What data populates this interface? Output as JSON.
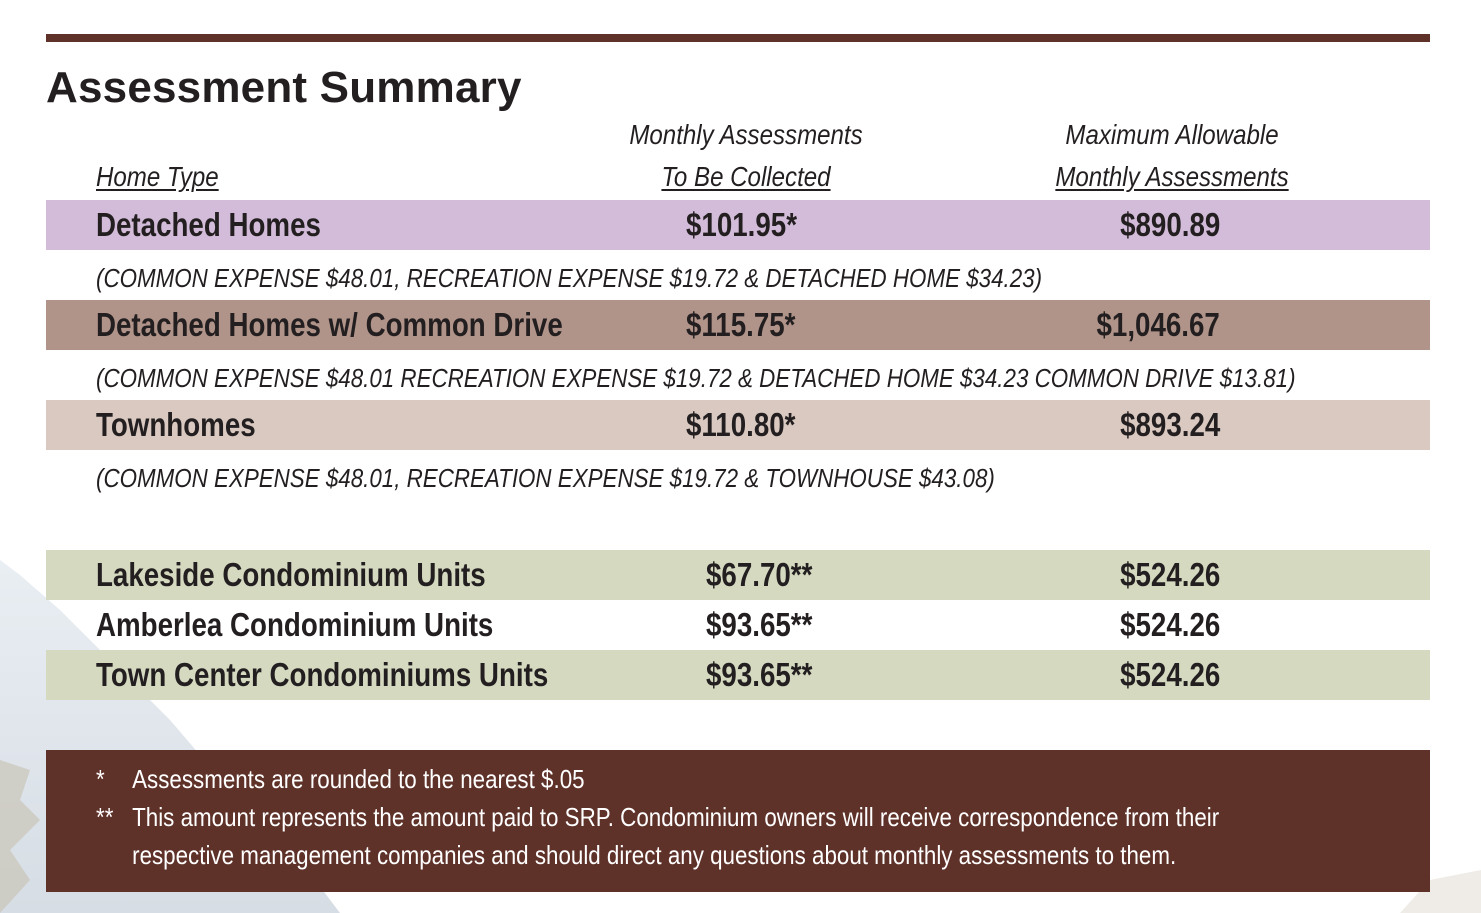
{
  "title": "Assessment Summary",
  "headers": {
    "home_type": "Home Type",
    "monthly_line1": "Monthly Assessments",
    "monthly_line2": "To Be Collected",
    "max_line1": "Maximum Allowable",
    "max_line2": "Monthly Assessments"
  },
  "rows": [
    {
      "name": "Detached Homes",
      "monthly": "$101.95*",
      "max": "$890.89",
      "note": "(COMMON EXPENSE $48.01, RECREATION EXPENSE $19.72 & DETACHED HOME $34.23)"
    },
    {
      "name": "Detached Homes w/ Common Drive",
      "monthly": "$115.75*",
      "max": "$1,046.67",
      "note": "(COMMON EXPENSE $48.01 RECREATION EXPENSE $19.72 & DETACHED HOME $34.23 COMMON DRIVE $13.81)"
    },
    {
      "name": "Townhomes",
      "monthly": "$110.80*",
      "max": "$893.24",
      "note": "(COMMON EXPENSE $48.01, RECREATION EXPENSE $19.72 & TOWNHOUSE $43.08)"
    },
    {
      "name": "Lakeside Condominium Units",
      "monthly": "$67.70**",
      "max": "$524.26"
    },
    {
      "name": "Amberlea Condominium Units",
      "monthly": "$93.65**",
      "max": "$524.26"
    },
    {
      "name": "Town Center Condominiums Units",
      "monthly": "$93.65**",
      "max": "$524.26"
    }
  ],
  "footnotes": {
    "single_mark": "*",
    "single_text": "Assessments are rounded to the nearest $.05",
    "double_mark": "**",
    "double_text_line1": "This amount represents the amount paid to SRP. Condominium owners will receive correspondence from their",
    "double_text_line2": "respective management companies and should direct any questions about monthly assessments to them."
  },
  "colors": {
    "brand_brown": "#5e3129",
    "detached_band": "#d3bcd9",
    "common_drive_band": "#b09389",
    "townhomes_band": "#d9c9c0",
    "condo_band": "#d4d9bf"
  }
}
